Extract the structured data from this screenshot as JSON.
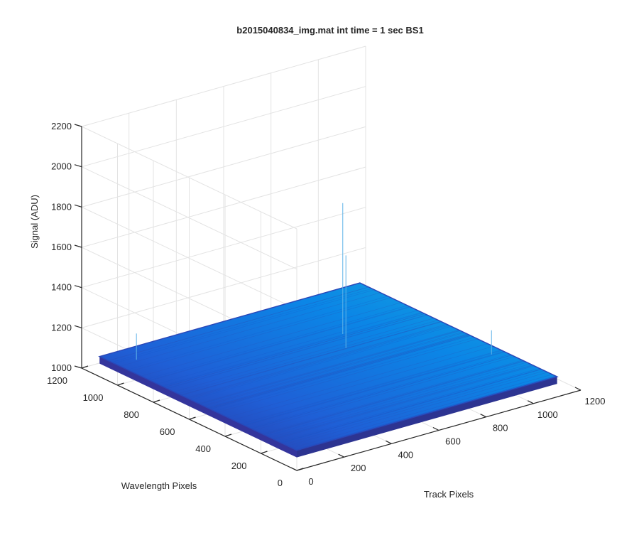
{
  "chart_data": {
    "type": "surface",
    "title": "b2015040834_img.mat int time = 1 sec   BS1",
    "xlabel": "Track Pixels",
    "ylabel": "Wavelength Pixels",
    "zlabel": "Signal (ADU)",
    "xlim": [
      0,
      1200
    ],
    "ylim": [
      0,
      1200
    ],
    "zlim": [
      1000,
      2200
    ],
    "x_ticks": [
      "0",
      "200",
      "400",
      "600",
      "800",
      "1000",
      "1200"
    ],
    "y_ticks": [
      "0",
      "200",
      "400",
      "600",
      "800",
      "1000",
      "1200"
    ],
    "z_ticks": [
      "1000",
      "1200",
      "1400",
      "1600",
      "1800",
      "2000",
      "2200"
    ],
    "grid": true,
    "surface": {
      "x_range": [
        0,
        1100
      ],
      "y_range": [
        0,
        1100
      ],
      "baseline_signal_approx": 1100,
      "corner_signal_approx": {
        "track0_wave0": 1100,
        "track0_wave1100": 1100,
        "track1100_wave0": 1100,
        "track1100_wave1100": 1100
      },
      "colormap": [
        "#2d2f9a",
        "#1f5fd6",
        "#0b86e6",
        "#14aadb"
      ],
      "spikes": [
        {
          "x": 80,
          "y": 1000,
          "z": 1230
        },
        {
          "x": 700,
          "y": 650,
          "z": 1560
        },
        {
          "x": 770,
          "y": 760,
          "z": 1750
        },
        {
          "x": 1050,
          "y": 300,
          "z": 1220
        }
      ]
    }
  }
}
